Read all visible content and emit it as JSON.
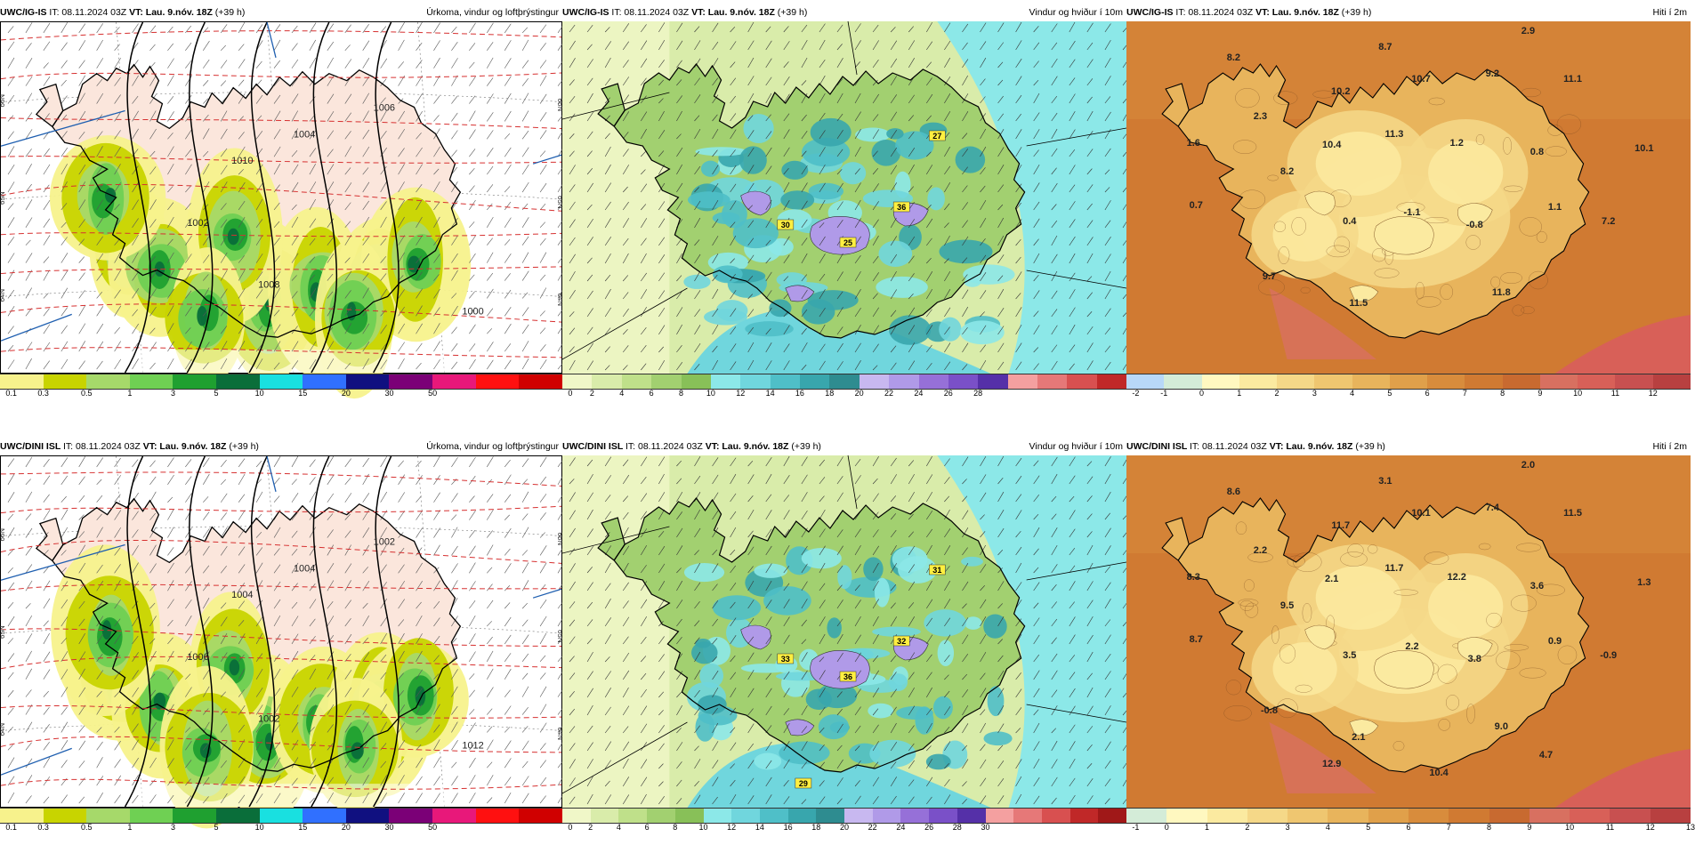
{
  "rows": [
    {
      "panels": [
        {
          "kind": "precip",
          "model": "UWC/IG-IS",
          "it": "IT: 08.11.2024 03Z",
          "vt_prefix": "VT:",
          "vt": "Lau. 9.nóv. 18Z",
          "lead": "(+39 h)",
          "title": "Úrkoma, vindur og loftþrýstingur",
          "isobars": [
            "1006",
            "1004",
            "1002",
            "1008",
            "1010",
            "1000"
          ],
          "lat_labels": [
            "66N",
            "65N",
            "64N"
          ],
          "colorbar": {
            "colors": [
              "#f7f28c",
              "#c8d400",
              "#a6d96a",
              "#6fd053",
              "#1fa030",
              "#0a6e3a",
              "#19e0e0",
              "#3070ff",
              "#101080",
              "#7b0077",
              "#e8187a",
              "#ff1010",
              "#d00000"
            ],
            "labels": [
              "0.1",
              "0.3",
              "0.5",
              "1",
              "3",
              "5",
              "10",
              "15",
              "20",
              "30",
              "50"
            ]
          }
        },
        {
          "kind": "wind",
          "model": "UWC/IG-IS",
          "it": "IT: 08.11.2024 03Z",
          "vt_prefix": "VT:",
          "vt": "Lau. 9.nóv. 18Z",
          "lead": "(+39 h)",
          "title": "Vindur og hviður í 10m",
          "gust_labels": [
            "27",
            "36",
            "25",
            "30"
          ],
          "colorbar": {
            "colors": [
              "#f0f7c8",
              "#d9ecaa",
              "#bfe08a",
              "#a2d070",
              "#88c058",
              "#8ce8e8",
              "#70d6dd",
              "#4fbfc8",
              "#38a6ad",
              "#2e8c90",
              "#c8b8f0",
              "#b09ae8",
              "#9670d8",
              "#7a50c8",
              "#5530a8",
              "#f4a0a0",
              "#e67878",
              "#d85050",
              "#c02828"
            ],
            "labels": [
              "0",
              "2",
              "4",
              "6",
              "8",
              "10",
              "12",
              "14",
              "16",
              "18",
              "20",
              "22",
              "24",
              "26",
              "28"
            ]
          }
        },
        {
          "kind": "temp",
          "model": "UWC/IG-IS",
          "it": "IT: 08.11.2024 03Z",
          "vt_prefix": "VT:",
          "vt": "Lau. 9.nóv. 18Z",
          "lead": "(+39 h)",
          "title": "Hiti í 2m",
          "temps": [
            "8.2",
            "8.7",
            "2.9",
            "1.6",
            "2.3",
            "10.2",
            "10.7",
            "9.2",
            "11.1",
            "10.4",
            "11.3",
            "1.2",
            "0.8",
            "10.1",
            "8.2",
            "0.7",
            "0.4",
            "-1.1",
            "-0.8",
            "1.1",
            "7.2",
            "9.7",
            "11.5",
            "11.8"
          ],
          "colorbar": {
            "colors": [
              "#b8d8f8",
              "#d4ecd8",
              "#fff8c0",
              "#fbeaa0",
              "#f5d888",
              "#efc670",
              "#e8b45c",
              "#e0a04a",
              "#d88c3c",
              "#d07a32",
              "#c86a30",
              "#d87060",
              "#d86058",
              "#c85050",
              "#b84040"
            ],
            "labels": [
              "-2",
              "-1",
              "0",
              "1",
              "2",
              "3",
              "4",
              "5",
              "6",
              "7",
              "8",
              "9",
              "10",
              "11",
              "12"
            ]
          }
        }
      ]
    },
    {
      "panels": [
        {
          "kind": "precip",
          "model": "UWC/DINI ISL",
          "it": "IT: 08.11.2024 03Z",
          "vt_prefix": "VT:",
          "vt": "Lau. 9.nóv. 18Z",
          "lead": "(+39 h)",
          "title": "Úrkoma, vindur og loftþrýstingur",
          "isobars": [
            "1002",
            "1004",
            "1006",
            "1002",
            "1004",
            "1012"
          ],
          "lat_labels": [
            "66N",
            "65N",
            "64N"
          ],
          "colorbar": {
            "colors": [
              "#f7f28c",
              "#c8d400",
              "#a6d96a",
              "#6fd053",
              "#1fa030",
              "#0a6e3a",
              "#19e0e0",
              "#3070ff",
              "#101080",
              "#7b0077",
              "#e8187a",
              "#ff1010",
              "#d00000"
            ],
            "labels": [
              "0.1",
              "0.3",
              "0.5",
              "1",
              "3",
              "5",
              "10",
              "15",
              "20",
              "30",
              "50"
            ]
          }
        },
        {
          "kind": "wind",
          "model": "UWC/DINI ISL",
          "it": "IT: 08.11.2024 03Z",
          "vt_prefix": "VT:",
          "vt": "Lau. 9.nóv. 18Z",
          "lead": "(+39 h)",
          "title": "Vindur og hviður í 10m",
          "gust_labels": [
            "31",
            "32",
            "36",
            "33",
            "29"
          ],
          "colorbar": {
            "colors": [
              "#f0f7c8",
              "#d9ecaa",
              "#bfe08a",
              "#a2d070",
              "#88c058",
              "#8ce8e8",
              "#70d6dd",
              "#4fbfc8",
              "#38a6ad",
              "#2e8c90",
              "#c8b8f0",
              "#b09ae8",
              "#9670d8",
              "#7a50c8",
              "#5530a8",
              "#f4a0a0",
              "#e67878",
              "#d85050",
              "#c02828",
              "#a01818"
            ],
            "labels": [
              "0",
              "2",
              "4",
              "6",
              "8",
              "10",
              "12",
              "14",
              "16",
              "18",
              "20",
              "22",
              "24",
              "26",
              "28",
              "30"
            ]
          }
        },
        {
          "kind": "temp",
          "model": "UWC/DINI ISL",
          "it": "IT: 08.11.2024 03Z",
          "vt_prefix": "VT:",
          "vt": "Lau. 9.nóv. 18Z",
          "lead": "(+39 h)",
          "title": "Hiti í 2m",
          "temps": [
            "8.6",
            "3.1",
            "2.0",
            "8.3",
            "2.2",
            "11.7",
            "10.1",
            "7.4",
            "11.5",
            "2.1",
            "11.7",
            "12.2",
            "3.6",
            "1.3",
            "9.5",
            "8.7",
            "3.5",
            "2.2",
            "3.8",
            "0.9",
            "-0.9",
            "-0.8",
            "2.1",
            "9.0",
            "12.9",
            "10.4",
            "4.7"
          ],
          "colorbar": {
            "colors": [
              "#d4ecd8",
              "#fff8c0",
              "#fbeaa0",
              "#f5d888",
              "#efc670",
              "#e8b45c",
              "#e0a04a",
              "#d88c3c",
              "#d07a32",
              "#c86a30",
              "#d87060",
              "#d86058",
              "#c85050",
              "#b84040"
            ],
            "labels": [
              "-1",
              "0",
              "1",
              "2",
              "3",
              "4",
              "5",
              "6",
              "7",
              "8",
              "9",
              "10",
              "11",
              "12",
              "13"
            ]
          }
        }
      ]
    }
  ]
}
